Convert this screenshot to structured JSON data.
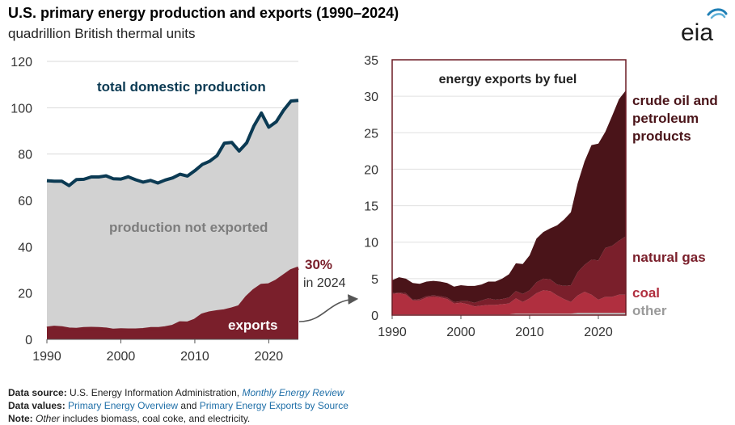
{
  "title": "U.S. primary energy production and exports (1990–2024)",
  "subtitle": "quadrillion British thermal units",
  "logo": {
    "text": "eia",
    "icon": "eia-logo-icon"
  },
  "colors": {
    "production_line": "#0b3a53",
    "production_fill": "#d2d2d2",
    "exports": "#7a1f2b",
    "crude": "#4a1419",
    "natural_gas": "#7a1f2b",
    "coal": "#b02f3f",
    "other": "#b8b8b8",
    "frame": "#6b1a24"
  },
  "chart_data": [
    {
      "type": "area",
      "title": "",
      "xlabel": "",
      "ylabel": "",
      "xlim": [
        1990,
        2024
      ],
      "ylim": [
        0,
        120
      ],
      "xticks": [
        1990,
        2000,
        2010,
        2020
      ],
      "yticks": [
        0,
        20,
        40,
        60,
        80,
        100,
        120
      ],
      "grid": true,
      "x": [
        1990,
        1991,
        1992,
        1993,
        1994,
        1995,
        1996,
        1997,
        1998,
        1999,
        2000,
        2001,
        2002,
        2003,
        2004,
        2005,
        2006,
        2007,
        2008,
        2009,
        2010,
        2011,
        2012,
        2013,
        2014,
        2015,
        2016,
        2017,
        2018,
        2019,
        2020,
        2021,
        2022,
        2023,
        2024
      ],
      "series": [
        {
          "name": "total domestic production",
          "values": [
            68.5,
            68.3,
            68.3,
            66.4,
            69.0,
            69.1,
            70.1,
            70.1,
            70.6,
            69.3,
            69.2,
            70.2,
            68.9,
            67.9,
            68.6,
            67.5,
            68.8,
            69.7,
            71.3,
            70.5,
            72.8,
            75.5,
            76.9,
            79.3,
            84.7,
            85.0,
            81.3,
            84.8,
            92.2,
            97.7,
            91.6,
            93.9,
            98.9,
            102.9,
            103.2
          ]
        },
        {
          "name": "exports",
          "values": [
            4.8,
            5.2,
            5.0,
            4.4,
            4.3,
            4.6,
            4.7,
            4.6,
            4.4,
            3.9,
            4.1,
            4.0,
            4.0,
            4.2,
            4.6,
            4.6,
            5.0,
            5.6,
            7.1,
            7.0,
            8.2,
            10.5,
            11.4,
            11.9,
            12.3,
            13.1,
            14.1,
            18.1,
            21.1,
            23.3,
            23.5,
            25.1,
            27.3,
            29.6,
            30.8
          ]
        }
      ],
      "labels": {
        "total": "total domestic production",
        "not_exported": "production not exported",
        "exports": "exports",
        "share": "30%",
        "share_note": "in 2024"
      }
    },
    {
      "type": "area",
      "title": "energy exports by fuel",
      "xlabel": "",
      "ylabel": "",
      "xlim": [
        1990,
        2024
      ],
      "ylim": [
        0,
        35
      ],
      "xticks": [
        1990,
        2000,
        2010,
        2020
      ],
      "yticks": [
        0,
        5,
        10,
        15,
        20,
        25,
        30,
        35
      ],
      "grid": true,
      "stacked": true,
      "x": [
        1990,
        1991,
        1992,
        1993,
        1994,
        1995,
        1996,
        1997,
        1998,
        1999,
        2000,
        2001,
        2002,
        2003,
        2004,
        2005,
        2006,
        2007,
        2008,
        2009,
        2010,
        2011,
        2012,
        2013,
        2014,
        2015,
        2016,
        2017,
        2018,
        2019,
        2020,
        2021,
        2022,
        2023,
        2024
      ],
      "series": [
        {
          "name": "other",
          "values": [
            0.1,
            0.1,
            0.1,
            0.1,
            0.1,
            0.1,
            0.1,
            0.1,
            0.1,
            0.1,
            0.1,
            0.1,
            0.1,
            0.1,
            0.1,
            0.1,
            0.1,
            0.1,
            0.2,
            0.2,
            0.2,
            0.2,
            0.2,
            0.2,
            0.2,
            0.2,
            0.2,
            0.3,
            0.3,
            0.3,
            0.3,
            0.3,
            0.3,
            0.3,
            0.3
          ]
        },
        {
          "name": "coal",
          "values": [
            2.8,
            2.9,
            2.7,
            1.9,
            1.9,
            2.3,
            2.4,
            2.3,
            2.1,
            1.5,
            1.6,
            1.4,
            1.1,
            1.2,
            1.3,
            1.3,
            1.4,
            1.5,
            2.1,
            1.6,
            2.1,
            2.8,
            3.2,
            3.1,
            2.5,
            2.0,
            1.6,
            2.4,
            2.9,
            2.5,
            1.8,
            2.2,
            2.2,
            2.5,
            2.5
          ]
        },
        {
          "name": "natural gas",
          "values": [
            0.1,
            0.1,
            0.2,
            0.1,
            0.2,
            0.2,
            0.2,
            0.2,
            0.2,
            0.2,
            0.2,
            0.4,
            0.5,
            0.7,
            0.9,
            0.7,
            0.7,
            0.8,
            1.0,
            1.1,
            1.1,
            1.5,
            1.6,
            1.6,
            1.5,
            1.8,
            2.3,
            3.2,
            3.7,
            4.8,
            5.4,
            6.7,
            7.0,
            7.4,
            8.0
          ]
        },
        {
          "name": "crude oil and petroleum products",
          "values": [
            1.8,
            2.1,
            2.0,
            2.3,
            2.1,
            2.0,
            2.0,
            2.0,
            2.0,
            2.1,
            2.2,
            2.1,
            2.3,
            2.2,
            2.3,
            2.5,
            2.8,
            3.2,
            3.8,
            4.1,
            4.8,
            6.0,
            6.4,
            7.0,
            8.1,
            9.1,
            10.0,
            12.2,
            14.2,
            15.7,
            16.0,
            15.9,
            17.8,
            19.4,
            20.0
          ]
        }
      ],
      "labels": {
        "crude": [
          "crude oil and",
          "petroleum",
          "products"
        ],
        "natural_gas": "natural gas",
        "coal": "coal",
        "other": "other"
      }
    }
  ],
  "footer": {
    "source_label": "Data source:",
    "source_text": "U.S. Energy Information Administration,",
    "source_pub": "Monthly Energy Review",
    "values_label": "Data values:",
    "values_link1": "Primary Energy Overview",
    "values_and": "and",
    "values_link2": "Primary Energy Exports by Source",
    "note_label": "Note:",
    "note_other": "Other",
    "note_text": "includes biomass, coal coke, and electricity."
  }
}
